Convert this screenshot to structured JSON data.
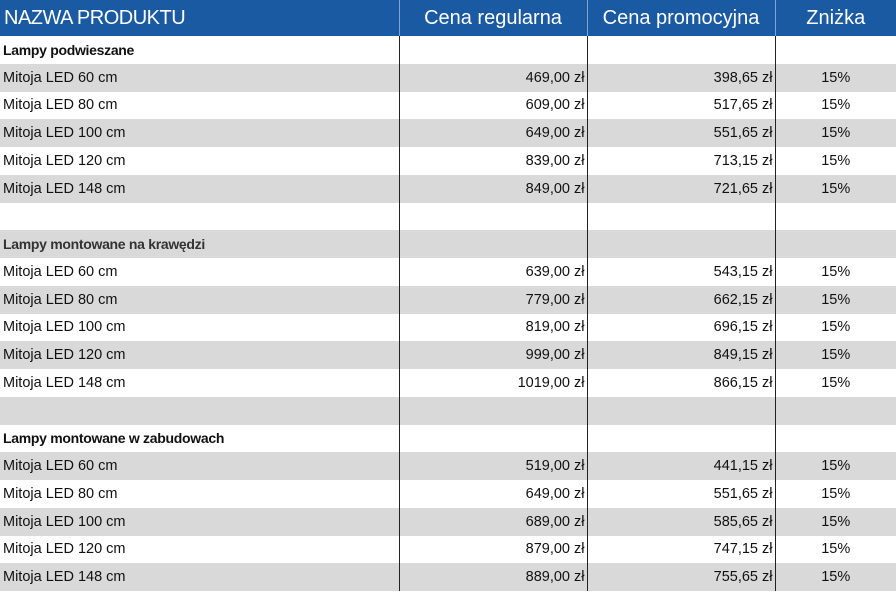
{
  "header": {
    "col_product": "NAZWA PRODUKTU",
    "col_regular": "Cena regularna",
    "col_promo": "Cena promocyjna",
    "col_discount": "Zniżka"
  },
  "sections": [
    {
      "title": "Lampy podwieszane",
      "rows": [
        {
          "name": "Mitoja LED 60 cm",
          "regular": "469,00 zł",
          "promo": "398,65 zł",
          "discount": "15%"
        },
        {
          "name": "Mitoja LED 80 cm",
          "regular": "609,00 zł",
          "promo": "517,65 zł",
          "discount": "15%"
        },
        {
          "name": "Mitoja LED 100 cm",
          "regular": "649,00 zł",
          "promo": "551,65 zł",
          "discount": "15%"
        },
        {
          "name": "Mitoja LED 120 cm",
          "regular": "839,00 zł",
          "promo": "713,15 zł",
          "discount": "15%"
        },
        {
          "name": "Mitoja LED 148 cm",
          "regular": "849,00 zł",
          "promo": "721,65 zł",
          "discount": "15%"
        }
      ]
    },
    {
      "title": "Lampy montowane na krawędzi",
      "rows": [
        {
          "name": "Mitoja LED 60 cm",
          "regular": "639,00 zł",
          "promo": "543,15 zł",
          "discount": "15%"
        },
        {
          "name": "Mitoja LED 80 cm",
          "regular": "779,00 zł",
          "promo": "662,15 zł",
          "discount": "15%"
        },
        {
          "name": "Mitoja LED 100 cm",
          "regular": "819,00 zł",
          "promo": "696,15 zł",
          "discount": "15%"
        },
        {
          "name": "Mitoja LED 120 cm",
          "regular": "999,00 zł",
          "promo": "849,15 zł",
          "discount": "15%"
        },
        {
          "name": "Mitoja LED 148 cm",
          "regular": "1019,00 zł",
          "promo": "866,15 zł",
          "discount": "15%"
        }
      ]
    },
    {
      "title": "Lampy montowane w zabudowach",
      "rows": [
        {
          "name": "Mitoja LED 60 cm",
          "regular": "519,00 zł",
          "promo": "441,15 zł",
          "discount": "15%"
        },
        {
          "name": "Mitoja LED 80 cm",
          "regular": "649,00 zł",
          "promo": "551,65 zł",
          "discount": "15%"
        },
        {
          "name": "Mitoja LED 100 cm",
          "regular": "689,00 zł",
          "promo": "585,65 zł",
          "discount": "15%"
        },
        {
          "name": "Mitoja LED 120 cm",
          "regular": "879,00 zł",
          "promo": "747,15 zł",
          "discount": "15%"
        },
        {
          "name": "Mitoja LED 148 cm",
          "regular": "889,00 zł",
          "promo": "755,65 zł",
          "discount": "15%"
        }
      ]
    }
  ],
  "colors": {
    "header_bg": "#1a5aa3",
    "header_text": "#ffffff",
    "row_shade": "#d9d9d9",
    "row_white": "#ffffff"
  }
}
